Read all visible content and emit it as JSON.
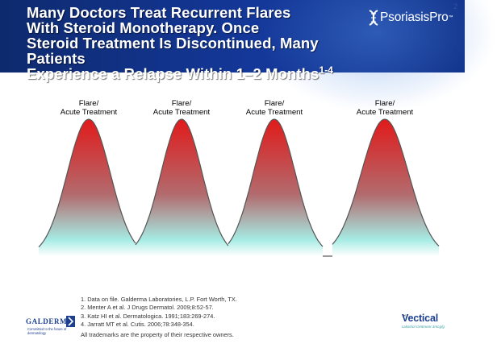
{
  "header": {
    "title_lines": [
      "Many Doctors Treat Recurrent Flares",
      "With Steroid Monotherapy. Once",
      "Steroid Treatment Is Discontinued, Many Patients",
      "Experience a Relapse Within 1–2 Months"
    ],
    "title_superscript": "1-4",
    "brand": "PsoriasisPro",
    "brand_tm": "™",
    "brand_icon": "dna-helix-icon",
    "page_number": "2"
  },
  "diagram": {
    "flares": [
      {
        "label_line1": "Flare/",
        "label_line2": "Acute Treatment"
      },
      {
        "label_line1": "Flare/",
        "label_line2": "Acute Treatment"
      },
      {
        "label_line1": "Flare/",
        "label_line2": "Acute Treatment"
      },
      {
        "label_line1": "Flare/",
        "label_line2": "Acute Treatment"
      }
    ],
    "colors": {
      "peak": "#e11a1a",
      "mid": "#b26b6e",
      "base": "#a6ebe4",
      "baseline": "#ffffff",
      "stroke": "#555555"
    }
  },
  "footer": {
    "references": [
      "1. Data on file. Galderma Laboratories, L.P. Fort Worth, TX.",
      "2. Menter A et al. J Drugs Dermatol. 2009;8:52-57.",
      "3. Katz HI et al. Dermatologica. 1991;183:269-274.",
      "4. Jarratt MT et al. Cutis. 2006;78:348-354."
    ],
    "trademark_note": "All trademarks are the property of their respective owners.",
    "galderma": {
      "name": "GALDERMA",
      "tagline": "Committed to the future of dermatology",
      "icon": "galderma-chevron-icon"
    },
    "vectical": {
      "name": "Vectical",
      "tm": "™",
      "tagline": "calcitriol Ointment 3mcg/g"
    }
  }
}
